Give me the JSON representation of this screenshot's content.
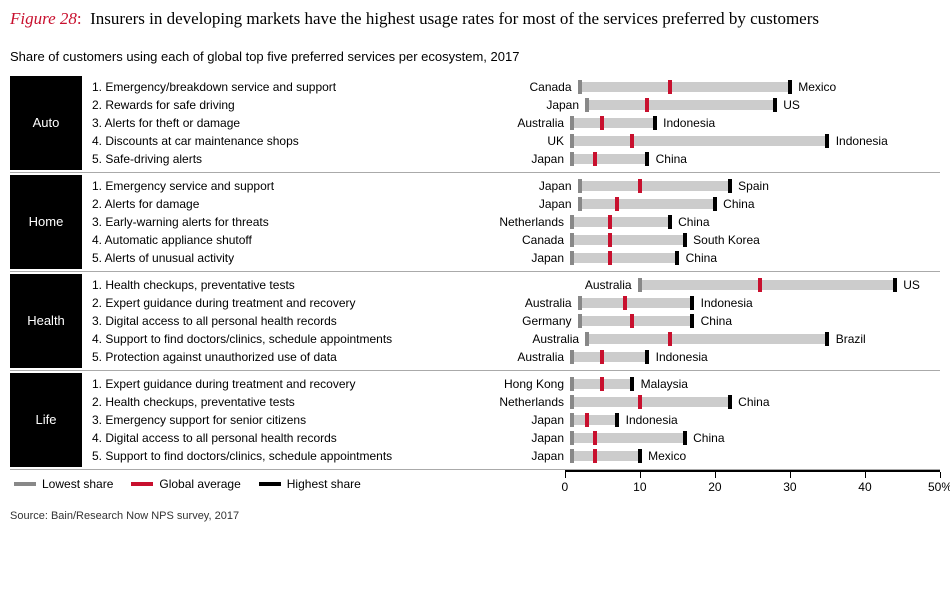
{
  "figure_label": "Figure 28",
  "colon": ":",
  "title": "Insurers in developing markets have the highest usage rates for most of the services preferred by customers",
  "subtitle": "Share of customers using each of global top five preferred services per ecosystem, 2017",
  "colors": {
    "accent_red": "#c8102e",
    "cat_bg": "#000000",
    "cat_fg": "#ffffff",
    "track": "#cccccc",
    "min_mark": "#888888",
    "avg_mark": "#c8102e",
    "max_mark": "#000000",
    "axis": "#000000",
    "sep": "#aaaaaa"
  },
  "axis": {
    "min": 0,
    "max": 50,
    "ticks": [
      0,
      10,
      20,
      30,
      40,
      50
    ],
    "tick_labels": [
      "0",
      "10",
      "20",
      "30",
      "40",
      "50%"
    ],
    "plot_start_pct": 30
  },
  "legend": [
    {
      "label": "Lowest share",
      "color": "#888888"
    },
    {
      "label": "Global average",
      "color": "#c8102e"
    },
    {
      "label": "Highest share",
      "color": "#000000"
    }
  ],
  "groups": [
    {
      "name": "Auto",
      "rows": [
        {
          "n": "1.",
          "service": "Emergency/breakdown service and support",
          "min_label": "Canada",
          "min": 2,
          "avg": 14,
          "max": 30,
          "max_label": "Mexico"
        },
        {
          "n": "2.",
          "service": "Rewards for safe driving",
          "min_label": "Japan",
          "min": 3,
          "avg": 11,
          "max": 28,
          "max_label": "US"
        },
        {
          "n": "3.",
          "service": "Alerts for theft or damage",
          "min_label": "Australia",
          "min": 1,
          "avg": 5,
          "max": 12,
          "max_label": "Indonesia"
        },
        {
          "n": "4.",
          "service": "Discounts at car maintenance shops",
          "min_label": "UK",
          "min": 1,
          "avg": 9,
          "max": 35,
          "max_label": "Indonesia"
        },
        {
          "n": "5.",
          "service": "Safe-driving alerts",
          "min_label": "Japan",
          "min": 1,
          "avg": 4,
          "max": 11,
          "max_label": "China"
        }
      ]
    },
    {
      "name": "Home",
      "rows": [
        {
          "n": "1.",
          "service": "Emergency service and support",
          "min_label": "Japan",
          "min": 2,
          "avg": 10,
          "max": 22,
          "max_label": "Spain"
        },
        {
          "n": "2.",
          "service": "Alerts for damage",
          "min_label": "Japan",
          "min": 2,
          "avg": 7,
          "max": 20,
          "max_label": "China"
        },
        {
          "n": "3.",
          "service": "Early-warning alerts for threats",
          "min_label": "Netherlands",
          "min": 1,
          "avg": 6,
          "max": 14,
          "max_label": "China"
        },
        {
          "n": "4.",
          "service": "Automatic appliance shutoff",
          "min_label": "Canada",
          "min": 1,
          "avg": 6,
          "max": 16,
          "max_label": "South Korea"
        },
        {
          "n": "5.",
          "service": "Alerts of unusual activity",
          "min_label": "Japan",
          "min": 1,
          "avg": 6,
          "max": 15,
          "max_label": "China"
        }
      ]
    },
    {
      "name": "Health",
      "rows": [
        {
          "n": "1.",
          "service": "Health checkups, preventative tests",
          "min_label": "Australia",
          "min": 10,
          "avg": 26,
          "max": 44,
          "max_label": "US"
        },
        {
          "n": "2.",
          "service": "Expert guidance during treatment and recovery",
          "min_label": "Australia",
          "min": 2,
          "avg": 8,
          "max": 17,
          "max_label": "Indonesia"
        },
        {
          "n": "3.",
          "service": "Digital access to all personal health records",
          "min_label": "Germany",
          "min": 2,
          "avg": 9,
          "max": 17,
          "max_label": "China"
        },
        {
          "n": "4.",
          "service": "Support to find doctors/clinics, schedule appointments",
          "min_label": "Australia",
          "min": 3,
          "avg": 14,
          "max": 35,
          "max_label": "Brazil"
        },
        {
          "n": "5.",
          "service": "Protection against unauthorized use of data",
          "min_label": "Australia",
          "min": 1,
          "avg": 5,
          "max": 11,
          "max_label": "Indonesia"
        }
      ]
    },
    {
      "name": "Life",
      "rows": [
        {
          "n": "1.",
          "service": "Expert guidance during treatment and recovery",
          "min_label": "Hong Kong",
          "min": 1,
          "avg": 5,
          "max": 9,
          "max_label": "Malaysia"
        },
        {
          "n": "2.",
          "service": "Health checkups, preventative tests",
          "min_label": "Netherlands",
          "min": 1,
          "avg": 10,
          "max": 22,
          "max_label": "China"
        },
        {
          "n": "3.",
          "service": "Emergency support for senior citizens",
          "min_label": "Japan",
          "min": 1,
          "avg": 3,
          "max": 7,
          "max_label": "Indonesia"
        },
        {
          "n": "4.",
          "service": "Digital access to all personal health records",
          "min_label": "Japan",
          "min": 1,
          "avg": 4,
          "max": 16,
          "max_label": "China"
        },
        {
          "n": "5.",
          "service": "Support to find doctors/clinics, schedule appointments",
          "min_label": "Japan",
          "min": 1,
          "avg": 4,
          "max": 10,
          "max_label": "Mexico"
        }
      ]
    }
  ],
  "source": "Source: Bain/Research Now NPS survey, 2017"
}
